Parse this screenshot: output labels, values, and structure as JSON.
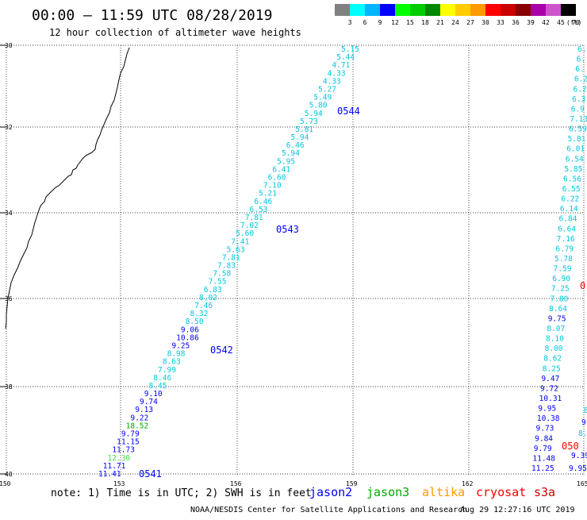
{
  "header": {
    "title": "00:00 – 11:59 UTC 08/28/2019",
    "subtitle": "12 hour collection of altimeter wave heights"
  },
  "legend": {
    "unit": "(ft)",
    "ticks": [
      "3",
      "6",
      "9",
      "12",
      "15",
      "18",
      "21",
      "24",
      "27",
      "30",
      "33",
      "36",
      "39",
      "42",
      "45",
      "70"
    ],
    "colors": [
      "#808080",
      "#00ffff",
      "#00b4ff",
      "#0000ff",
      "#00ff00",
      "#00cc00",
      "#008800",
      "#ffff00",
      "#ffcc00",
      "#ff9900",
      "#ff0000",
      "#cc0000",
      "#880000",
      "#aa00aa",
      "#cc55cc",
      "#000000"
    ]
  },
  "axes": {
    "y_ticks": [
      "30",
      "32",
      "34",
      "36",
      "38",
      "40"
    ],
    "x_ticks": [
      "150",
      "153",
      "156",
      "159",
      "162",
      "165"
    ]
  },
  "track_colors": {
    "cyan": "#00c8e0",
    "blue": "#0000ff",
    "green": "#00aa00",
    "ltgreen": "#44dd44",
    "red": "#ff0000"
  },
  "tracks": [
    {
      "name": "main-track",
      "points": [
        {
          "v": "5.15",
          "c": "cyan"
        },
        {
          "v": "5.44",
          "c": "cyan"
        },
        {
          "v": "4.71",
          "c": "cyan"
        },
        {
          "v": "4.33",
          "c": "cyan"
        },
        {
          "v": "4.33",
          "c": "cyan"
        },
        {
          "v": "5.27",
          "c": "cyan"
        },
        {
          "v": "5.49",
          "c": "cyan"
        },
        {
          "v": "5.80",
          "c": "cyan"
        },
        {
          "v": "5.94",
          "c": "cyan"
        },
        {
          "v": "5.73",
          "c": "cyan"
        },
        {
          "v": "5.81",
          "c": "cyan"
        },
        {
          "v": "5.94",
          "c": "cyan"
        },
        {
          "v": "6.46",
          "c": "cyan"
        },
        {
          "v": "5.94",
          "c": "cyan"
        },
        {
          "v": "5.95",
          "c": "cyan"
        },
        {
          "v": "6.41",
          "c": "cyan"
        },
        {
          "v": "6.60",
          "c": "cyan"
        },
        {
          "v": "7.10",
          "c": "cyan"
        },
        {
          "v": "5.21",
          "c": "cyan"
        },
        {
          "v": "6.46",
          "c": "cyan"
        },
        {
          "v": "6.53",
          "c": "cyan"
        },
        {
          "v": "7.81",
          "c": "cyan"
        },
        {
          "v": "7.02",
          "c": "cyan"
        },
        {
          "v": "5.60",
          "c": "cyan"
        },
        {
          "v": "7.41",
          "c": "cyan"
        },
        {
          "v": "5.63",
          "c": "cyan"
        },
        {
          "v": "7.81",
          "c": "cyan"
        },
        {
          "v": "7.83",
          "c": "cyan"
        },
        {
          "v": "7.58",
          "c": "cyan"
        },
        {
          "v": "7.55",
          "c": "cyan"
        },
        {
          "v": "6.83",
          "c": "cyan"
        },
        {
          "v": "8.02",
          "c": "cyan"
        },
        {
          "v": "7.46",
          "c": "cyan"
        },
        {
          "v": "8.32",
          "c": "cyan"
        },
        {
          "v": "8.50",
          "c": "cyan"
        },
        {
          "v": "9.06",
          "c": "blue"
        },
        {
          "v": "10.86",
          "c": "blue"
        },
        {
          "v": "9.25",
          "c": "blue"
        },
        {
          "v": "8.98",
          "c": "cyan"
        },
        {
          "v": "8.63",
          "c": "cyan"
        },
        {
          "v": "7.99",
          "c": "cyan"
        },
        {
          "v": "8.46",
          "c": "cyan"
        },
        {
          "v": "8.45",
          "c": "cyan"
        },
        {
          "v": "9.10",
          "c": "blue"
        },
        {
          "v": "9.74",
          "c": "blue"
        },
        {
          "v": "9.13",
          "c": "blue"
        },
        {
          "v": "9.22",
          "c": "blue"
        },
        {
          "v": "18.52",
          "c": "green"
        },
        {
          "v": "9.79",
          "c": "blue"
        },
        {
          "v": "11.15",
          "c": "blue"
        },
        {
          "v": "11.73",
          "c": "blue"
        },
        {
          "v": "12.30",
          "c": "ltgreen"
        },
        {
          "v": "11.71",
          "c": "blue"
        },
        {
          "v": "11.41",
          "c": "blue"
        }
      ]
    },
    {
      "name": "right-track",
      "points": [
        {
          "v": "6.",
          "c": "cyan"
        },
        {
          "v": "6.",
          "c": "cyan"
        },
        {
          "v": "6.",
          "c": "cyan"
        },
        {
          "v": "6.2",
          "c": "cyan"
        },
        {
          "v": "6.2",
          "c": "cyan"
        },
        {
          "v": "6.3",
          "c": "cyan"
        },
        {
          "v": "6.9",
          "c": "cyan"
        },
        {
          "v": "7.13",
          "c": "cyan"
        },
        {
          "v": "6.59",
          "c": "cyan"
        },
        {
          "v": "5.81",
          "c": "cyan"
        },
        {
          "v": "6.01",
          "c": "cyan"
        },
        {
          "v": "6.54",
          "c": "cyan"
        },
        {
          "v": "5.85",
          "c": "cyan"
        },
        {
          "v": "6.56",
          "c": "cyan"
        },
        {
          "v": "6.55",
          "c": "cyan"
        },
        {
          "v": "6.22",
          "c": "cyan"
        },
        {
          "v": "6.14",
          "c": "cyan"
        },
        {
          "v": "6.84",
          "c": "cyan"
        },
        {
          "v": "6.64",
          "c": "cyan"
        },
        {
          "v": "7.16",
          "c": "cyan"
        },
        {
          "v": "6.79",
          "c": "cyan"
        },
        {
          "v": "5.78",
          "c": "cyan"
        },
        {
          "v": "7.59",
          "c": "cyan"
        },
        {
          "v": "6.90",
          "c": "cyan"
        },
        {
          "v": "7.25",
          "c": "cyan"
        },
        {
          "v": "7.80",
          "c": "cyan"
        },
        {
          "v": "8.64",
          "c": "cyan"
        },
        {
          "v": "9.75",
          "c": "blue"
        },
        {
          "v": "8.07",
          "c": "cyan"
        },
        {
          "v": "8.10",
          "c": "cyan"
        },
        {
          "v": "8.00",
          "c": "cyan"
        },
        {
          "v": "8.62",
          "c": "cyan"
        },
        {
          "v": "8.25",
          "c": "cyan"
        },
        {
          "v": "9.47",
          "c": "blue"
        },
        {
          "v": "9.72",
          "c": "blue"
        },
        {
          "v": "10.31",
          "c": "blue"
        },
        {
          "v": "9.95",
          "c": "blue"
        },
        {
          "v": "10.38",
          "c": "blue"
        },
        {
          "v": "9.73",
          "c": "blue"
        },
        {
          "v": "9.84",
          "c": "blue"
        },
        {
          "v": "9.79",
          "c": "blue"
        },
        {
          "v": "11.48",
          "c": "blue"
        },
        {
          "v": "11.25",
          "c": "blue"
        }
      ]
    }
  ],
  "extra_labels": [
    {
      "text": "9.95",
      "c": "blue"
    },
    {
      "text": "9.39",
      "c": "blue"
    },
    {
      "text": "9.9",
      "c": "blue"
    },
    {
      "text": "8.",
      "c": "cyan"
    },
    {
      "text": "8",
      "c": "cyan"
    }
  ],
  "pass_times": [
    {
      "text": "0544",
      "c": "blue"
    },
    {
      "text": "0543",
      "c": "blue"
    },
    {
      "text": "0542",
      "c": "blue"
    },
    {
      "text": "0541",
      "c": "blue"
    },
    {
      "text": "050",
      "c": "red"
    },
    {
      "text": "0",
      "c": "red"
    }
  ],
  "footer": {
    "note": "note: 1) Time is in UTC; 2) SWH is in feet",
    "credit": "NOAA/NESDIS Center for Satellite Applications and Research",
    "timestamp": "Aug 29 12:27:16 UTC 2019",
    "satellites": [
      {
        "name": "jason2",
        "color": "#0000ff"
      },
      {
        "name": "jason3",
        "color": "#00aa00"
      },
      {
        "name": "altika",
        "color": "#ff9900"
      },
      {
        "name": "cryosat",
        "color": "#ff0000"
      },
      {
        "name": "s3a",
        "color": "#cc0000"
      }
    ]
  }
}
